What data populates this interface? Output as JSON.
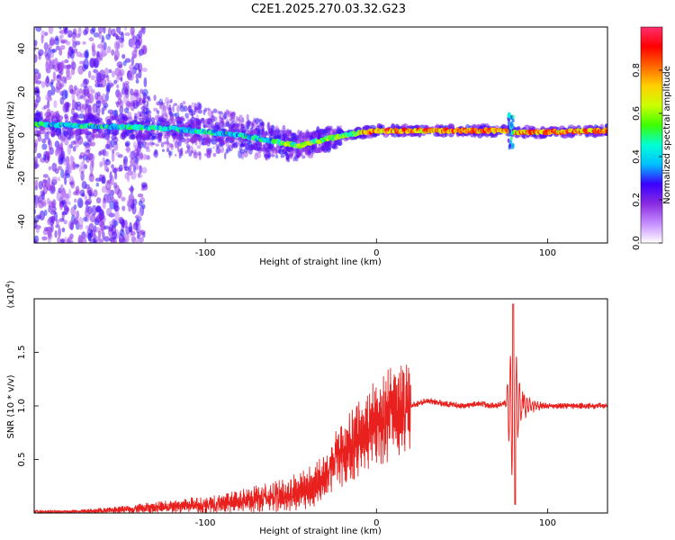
{
  "title": "C2E1.2025.270.03.32.G23",
  "chart_data": [
    {
      "type": "heatmap",
      "name": "spectrogram",
      "xlabel": "Height of straight line (km)",
      "ylabel": "Frequency (Hz)",
      "xlim": [
        -200,
        135
      ],
      "ylim": [
        -50,
        50
      ],
      "xticks": [
        -100,
        0,
        100
      ],
      "yticks": [
        -40,
        -20,
        0,
        20,
        40
      ],
      "colorbar": {
        "label": "Normalized spectral amplitude",
        "range": [
          0,
          1
        ],
        "ticks": [
          "0.0",
          "0.2",
          "0.4",
          "0.6",
          "0.8"
        ],
        "tick_values": [
          0.0,
          0.2,
          0.4,
          0.6,
          0.8
        ],
        "colors": [
          "#ffffff",
          "#c58cff",
          "#8a2be2",
          "#3a00ff",
          "#00bfff",
          "#00ffd5",
          "#3dff00",
          "#ccff00",
          "#ffd000",
          "#ff6600",
          "#ff0000",
          "#ff2e6e"
        ]
      },
      "ridge": [
        {
          "x": -200,
          "y": 5
        },
        {
          "x": -160,
          "y": 4
        },
        {
          "x": -120,
          "y": 3
        },
        {
          "x": -80,
          "y": 0
        },
        {
          "x": -60,
          "y": -3
        },
        {
          "x": -45,
          "y": -5
        },
        {
          "x": -30,
          "y": -2
        },
        {
          "x": -10,
          "y": 1
        },
        {
          "x": 0,
          "y": 2
        },
        {
          "x": 50,
          "y": 2
        },
        {
          "x": 75,
          "y": 2
        },
        {
          "x": 80,
          "y": 1
        },
        {
          "x": 135,
          "y": 2
        }
      ]
    },
    {
      "type": "line",
      "name": "snr",
      "xlabel": "Height of straight line (km)",
      "ylabel": "SNR (10 * v/v)",
      "y_multiplier": "(x10",
      "y_multiplier_exp": "4",
      "xlim": [
        -200,
        135
      ],
      "ylim": [
        0,
        2.0
      ],
      "xticks": [
        -100,
        0,
        100
      ],
      "yticks": [
        0.5,
        1.0,
        1.5
      ],
      "ytick_labels": [
        "0.5",
        "1.0",
        "1.5"
      ],
      "color": "#e8201e",
      "series": [
        {
          "name": "SNR",
          "x": [
            -200,
            -180,
            -160,
            -140,
            -120,
            -100,
            -80,
            -60,
            -50,
            -40,
            -30,
            -25,
            -20,
            -15,
            -10,
            -5,
            0,
            10,
            20,
            30,
            40,
            50,
            60,
            70,
            75,
            78,
            80,
            82,
            85,
            90,
            100,
            110,
            120,
            135
          ],
          "y": [
            0.01,
            0.01,
            0.02,
            0.04,
            0.06,
            0.08,
            0.11,
            0.15,
            0.18,
            0.22,
            0.35,
            0.48,
            0.55,
            0.62,
            0.72,
            0.78,
            0.85,
            0.93,
            1.0,
            1.05,
            1.02,
            1.0,
            1.02,
            1.0,
            1.03,
            0.9,
            1.2,
            0.7,
            1.05,
            1.02,
            1.0,
            1.0,
            1.0,
            1.0
          ]
        }
      ]
    }
  ]
}
